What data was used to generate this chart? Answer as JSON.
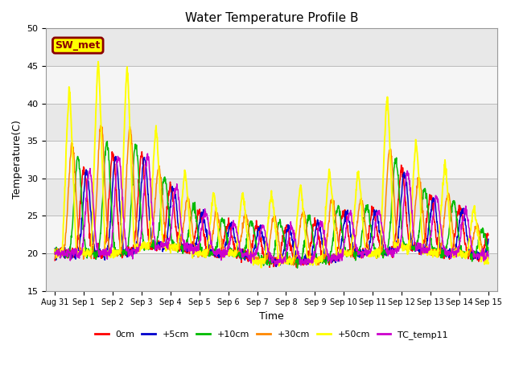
{
  "title": "Water Temperature Profile B",
  "xlabel": "Time",
  "ylabel": "Temperature(C)",
  "ylim": [
    15,
    50
  ],
  "annotation_text": "SW_met",
  "annotation_bg": "#ffff00",
  "annotation_border": "#8B0000",
  "annotation_text_color": "#8B0000",
  "band_colors": [
    "#e8e8e8",
    "#f5f5f5"
  ],
  "grid_color": "#bbbbbb",
  "series": [
    {
      "label": "0cm",
      "color": "#ff0000",
      "lw": 1.1
    },
    {
      "label": "+5cm",
      "color": "#0000cc",
      "lw": 1.1
    },
    {
      "label": "+10cm",
      "color": "#00bb00",
      "lw": 1.1
    },
    {
      "label": "+30cm",
      "color": "#ff8800",
      "lw": 1.1
    },
    {
      "label": "+50cm",
      "color": "#ffff00",
      "lw": 1.4
    },
    {
      "label": "TC_temp11",
      "color": "#cc00cc",
      "lw": 1.1
    }
  ],
  "xtick_labels": [
    "Aug 31",
    "Sep 1",
    "Sep 2",
    "Sep 3",
    "Sep 4",
    "Sep 5",
    "Sep 6",
    "Sep 7",
    "Sep 8",
    "Sep 9",
    "Sep 10",
    "Sep 11",
    "Sep 12",
    "Sep 13",
    "Sep 14",
    "Sep 15"
  ],
  "xtick_positions": [
    0,
    1,
    2,
    3,
    4,
    5,
    6,
    7,
    8,
    9,
    10,
    11,
    12,
    13,
    14,
    15
  ],
  "ytick_positions": [
    15,
    20,
    25,
    30,
    35,
    40,
    45,
    50
  ]
}
